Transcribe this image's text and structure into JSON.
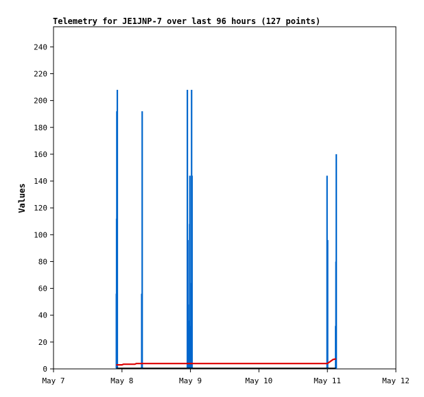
{
  "chart_data": {
    "type": "line",
    "title": "Telemetry for JE1JNP-7 over last 96 hours (127 points)",
    "ylabel": "Values",
    "xlabel": "",
    "x_ticks": [
      "May 7",
      "May 8",
      "May 9",
      "May 10",
      "May 11",
      "May 12"
    ],
    "y_ticks": [
      0,
      20,
      40,
      60,
      80,
      100,
      120,
      140,
      160,
      180,
      200,
      220,
      240
    ],
    "xlim": [
      "May 7",
      "May 12"
    ],
    "ylim": [
      0,
      255
    ],
    "grid": false,
    "series": [
      {
        "color": "#0066cc",
        "style": "spikes",
        "points": [
          {
            "x": "May 7 22:02",
            "y": 56
          },
          {
            "x": "May 7 22:07",
            "y": 112
          },
          {
            "x": "May 7 22:12",
            "y": 192
          },
          {
            "x": "May 7 22:22",
            "y": 208
          },
          {
            "x": "May 8 06:55",
            "y": 56
          },
          {
            "x": "May 8 07:05",
            "y": 192
          },
          {
            "x": "May 8 22:55",
            "y": 208
          },
          {
            "x": "May 8 23:05",
            "y": 96
          },
          {
            "x": "May 8 23:10",
            "y": 48
          },
          {
            "x": "May 8 23:34",
            "y": 36
          },
          {
            "x": "May 8 23:43",
            "y": 108
          },
          {
            "x": "May 8 23:48",
            "y": 144
          },
          {
            "x": "May 9 00:10",
            "y": 32
          },
          {
            "x": "May 9 00:19",
            "y": 64
          },
          {
            "x": "May 9 00:24",
            "y": 208
          },
          {
            "x": "May 9 00:34",
            "y": 144
          },
          {
            "x": "May 10 23:53",
            "y": 144
          },
          {
            "x": "May 11 00:05",
            "y": 96
          },
          {
            "x": "May 11 02:53",
            "y": 32
          },
          {
            "x": "May 11 03:00",
            "y": 80
          },
          {
            "x": "May 11 03:07",
            "y": 160
          }
        ]
      },
      {
        "color": "#dd0000",
        "style": "line",
        "points": [
          {
            "x": "May 7 22:00",
            "y": 3
          },
          {
            "x": "May 8 00:00",
            "y": 3
          },
          {
            "x": "May 8 00:30",
            "y": 3.5
          },
          {
            "x": "May 8 04:30",
            "y": 3.5
          },
          {
            "x": "May 8 05:00",
            "y": 4
          },
          {
            "x": "May 11 00:00",
            "y": 4
          },
          {
            "x": "May 11 02:00",
            "y": 7
          },
          {
            "x": "May 11 03:00",
            "y": 7.5
          }
        ]
      },
      {
        "color": "#000000",
        "style": "line",
        "points": [
          {
            "x": "May 7 22:00",
            "y": 0.5
          },
          {
            "x": "May 11 03:00",
            "y": 0.5
          }
        ]
      }
    ]
  }
}
